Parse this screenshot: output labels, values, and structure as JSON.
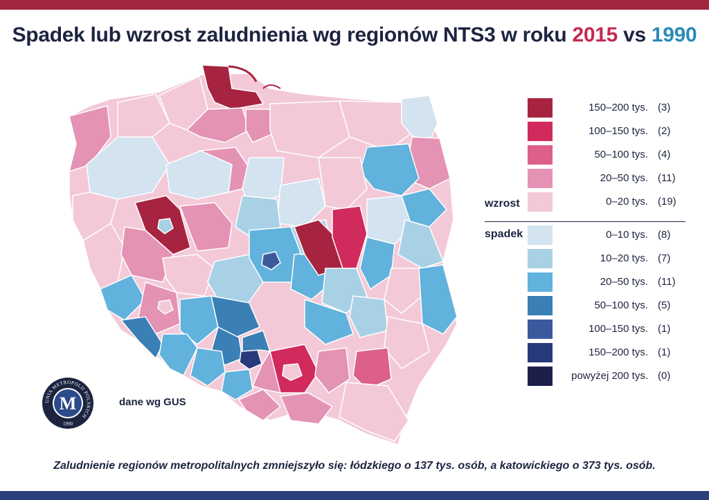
{
  "title": {
    "prefix": "Spadek lub wzrost zaludnienia wg regionów NTS3 w roku ",
    "year_a": "2015",
    "vs": " vs ",
    "year_b": "1990"
  },
  "colors": {
    "top_bar": "#a3263f",
    "bottom_bar": "#2b3f7a",
    "year_a": "#c42a52",
    "year_b": "#2a8bb8"
  },
  "legend": {
    "growth_label": "wzrost",
    "decline_label": "spadek",
    "items": [
      {
        "range": "150–200 tys.",
        "count": "(3)",
        "color": "#a6243f"
      },
      {
        "range": "100–150 tys.",
        "count": "(2)",
        "color": "#d12a5c"
      },
      {
        "range": "50–100 tys.",
        "count": "(4)",
        "color": "#dd5f8c"
      },
      {
        "range": "20–50 tys.",
        "count": "(11)",
        "color": "#e493b4"
      },
      {
        "range": "0–20 tys.",
        "count": "(19)",
        "color": "#f3c9d8"
      },
      {
        "range": "0–10 tys.",
        "count": "(8)",
        "color": "#d3e3f0"
      },
      {
        "range": "10–20 tys.",
        "count": "(7)",
        "color": "#a9d1e6"
      },
      {
        "range": "20–50 tys.",
        "count": "(11)",
        "color": "#61b2dc"
      },
      {
        "range": "50–100 tys.",
        "count": "(5)",
        "color": "#3a7fb5"
      },
      {
        "range": "100–150 tys.",
        "count": "(1)",
        "color": "#3b5a9e"
      },
      {
        "range": "150–200 tys.",
        "count": "(1)",
        "color": "#283a7a"
      },
      {
        "range": "powyżej 200 tys.",
        "count": "(0)",
        "color": "#1b1f4a"
      }
    ]
  },
  "logo": {
    "ring_text": "UNIA METROPOLII POLSKICH",
    "letter": "M",
    "year": "1990"
  },
  "source": "dane wg GUS",
  "footer": "Zaludnienie regionów metropolitalnych zmniejszyło się: łódzkiego o 137 tys. osób, a katowickiego o 373 tys. osób.",
  "map": {
    "regions": [
      {
        "name": "pomorskie-west",
        "class": "0–20 tys.",
        "color": "#f3c9d8"
      },
      {
        "name": "trojmiasto",
        "class": "150–200 tys.",
        "color": "#a6243f"
      },
      {
        "name": "poznan-region",
        "class": "150–200 tys.",
        "color": "#a6243f"
      },
      {
        "name": "warszawa-region",
        "class": "150–200 tys.",
        "color": "#a6243f"
      },
      {
        "name": "warszawa-wschod",
        "class": "100–150 tys.",
        "color": "#d12a5c"
      },
      {
        "name": "krakow-region",
        "class": "100–150 tys.",
        "color": "#d12a5c"
      },
      {
        "name": "katowice",
        "class": "150–200 tys.",
        "color": "#283a7a"
      },
      {
        "name": "lodz",
        "class": "100–150 tys.",
        "color": "#3b5a9e"
      }
    ]
  }
}
